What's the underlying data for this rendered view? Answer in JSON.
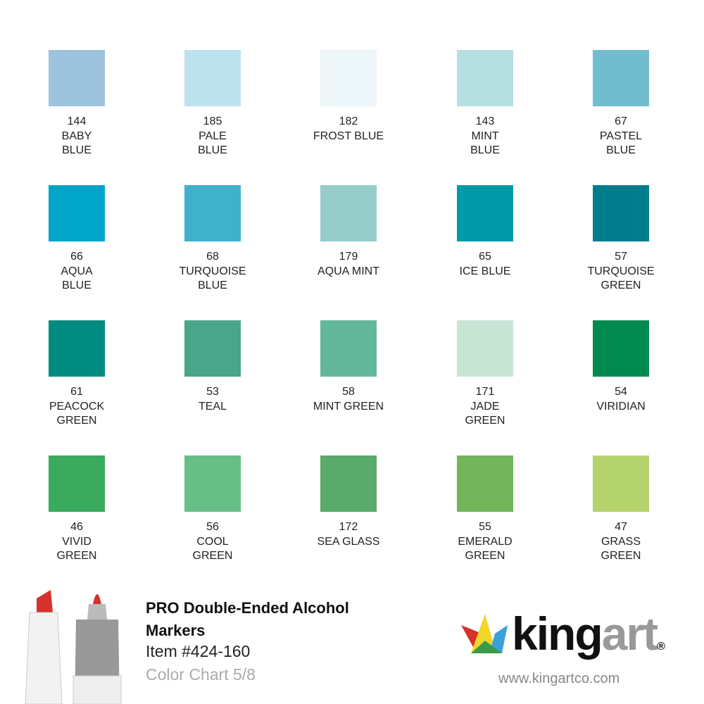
{
  "swatches": [
    {
      "code": "144",
      "name": [
        "BABY",
        "BLUE"
      ],
      "color": "#9dc3dd"
    },
    {
      "code": "185",
      "name": [
        "PALE",
        "BLUE"
      ],
      "color": "#bde3ee"
    },
    {
      "code": "182",
      "name": [
        "FROST BLUE"
      ],
      "color": "#edf6f9"
    },
    {
      "code": "143",
      "name": [
        "MINT",
        "BLUE"
      ],
      "color": "#b6dfe2"
    },
    {
      "code": "67",
      "name": [
        "PASTEL",
        "BLUE"
      ],
      "color": "#72bcd0"
    },
    {
      "code": "66",
      "name": [
        "AQUA",
        "BLUE"
      ],
      "color": "#00a5c9"
    },
    {
      "code": "68",
      "name": [
        "TURQUOISE",
        "BLUE"
      ],
      "color": "#40b1cb"
    },
    {
      "code": "179",
      "name": [
        "AQUA MINT"
      ],
      "color": "#96ccc9"
    },
    {
      "code": "65",
      "name": [
        "ICE BLUE"
      ],
      "color": "#009aa8"
    },
    {
      "code": "57",
      "name": [
        "TURQUOISE",
        "GREEN"
      ],
      "color": "#007d8c"
    },
    {
      "code": "61",
      "name": [
        "PEACOCK",
        "GREEN"
      ],
      "color": "#008b80"
    },
    {
      "code": "53",
      "name": [
        "TEAL"
      ],
      "color": "#4aa58a"
    },
    {
      "code": "58",
      "name": [
        "MINT GREEN"
      ],
      "color": "#63b89b"
    },
    {
      "code": "171",
      "name": [
        "JADE",
        "GREEN"
      ],
      "color": "#c8e4d5"
    },
    {
      "code": "54",
      "name": [
        "VIRIDIAN"
      ],
      "color": "#008a4f"
    },
    {
      "code": "46",
      "name": [
        "VIVID",
        "GREEN"
      ],
      "color": "#3aaa5f"
    },
    {
      "code": "56",
      "name": [
        "COOL",
        "GREEN"
      ],
      "color": "#67bf87"
    },
    {
      "code": "172",
      "name": [
        "SEA GLASS"
      ],
      "color": "#58ab6a"
    },
    {
      "code": "55",
      "name": [
        "EMERALD",
        "GREEN"
      ],
      "color": "#72b55b"
    },
    {
      "code": "47",
      "name": [
        "GRASS",
        "GREEN"
      ],
      "color": "#b5d36c"
    }
  ],
  "footer": {
    "title": "PRO Double-Ended Alcohol Markers",
    "item": "Item #424-160",
    "chart": "Color Chart 5/8",
    "logo": {
      "king": "king",
      "art": "art",
      "mark": "®"
    },
    "url": "www.kingartco.com"
  }
}
